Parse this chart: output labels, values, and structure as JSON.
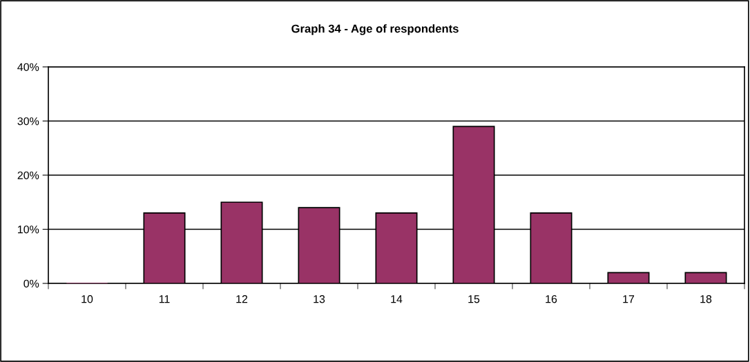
{
  "chart_data": {
    "type": "bar",
    "title": "Graph 34 - Age of respondents",
    "categories": [
      "10",
      "11",
      "12",
      "13",
      "14",
      "15",
      "16",
      "17",
      "18"
    ],
    "values": [
      0,
      13,
      15,
      14,
      13,
      29,
      13,
      2,
      2
    ],
    "color": "#993366",
    "ylim": [
      0,
      40
    ],
    "yticks": [
      {
        "value": 0,
        "label": "0%"
      },
      {
        "value": 10,
        "label": "10%"
      },
      {
        "value": 20,
        "label": "20%"
      },
      {
        "value": 30,
        "label": "30%"
      },
      {
        "value": 40,
        "label": "40%"
      }
    ],
    "grid": "y"
  }
}
